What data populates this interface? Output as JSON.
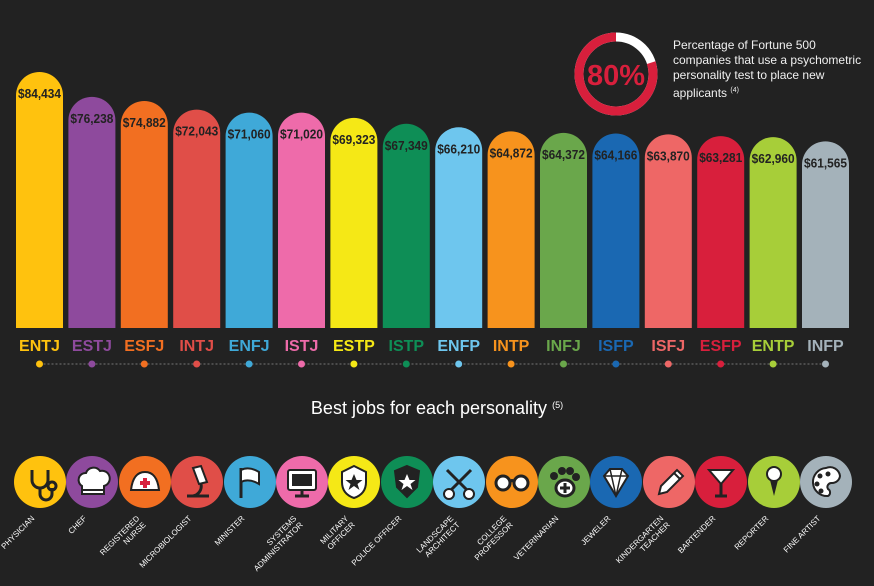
{
  "chart_data": {
    "type": "bar",
    "title": "",
    "xlabel": "",
    "ylabel": "",
    "categories": [
      "ENTJ",
      "ESTJ",
      "ESFJ",
      "INTJ",
      "ENFJ",
      "ISTJ",
      "ESTP",
      "ISTP",
      "ENFP",
      "INTP",
      "INFJ",
      "ISFP",
      "ISFJ",
      "ESFP",
      "ENTP",
      "INFP"
    ],
    "values": [
      84434,
      76238,
      74882,
      72043,
      71060,
      71020,
      69323,
      67349,
      66210,
      64872,
      64372,
      64166,
      63870,
      63281,
      62960,
      61565
    ],
    "value_labels": [
      "$84,434",
      "$76,238",
      "$74,882",
      "$72,043",
      "$71,060",
      "$71,020",
      "$69,323",
      "$67,349",
      "$66,210",
      "$64,872",
      "$64,372",
      "$64,166",
      "$63,870",
      "$63,281",
      "$62,960",
      "$61,565"
    ],
    "colors": [
      "#FFC20E",
      "#8E4A9D",
      "#F26F21",
      "#E04E48",
      "#3FA9D8",
      "#EE6BAA",
      "#F5E816",
      "#0E8E56",
      "#6EC6EE",
      "#F7931D",
      "#6AA74B",
      "#1A68B2",
      "#EE6766",
      "#D81F3C",
      "#A7CE39",
      "#A4B2BA"
    ],
    "label_colors": [
      "#FFC20E",
      "#8E4A9D",
      "#F26F21",
      "#E04E48",
      "#3FA9D8",
      "#EE6BAA",
      "#F5E816",
      "#0E8E56",
      "#6EC6EE",
      "#F7931D",
      "#6AA74B",
      "#1A68B2",
      "#EE6766",
      "#D81F3C",
      "#A7CE39",
      "#A4B2BA"
    ],
    "ylim": [
      0,
      90000
    ],
    "grid": false,
    "legend": "none"
  },
  "stat": {
    "value": "80%",
    "percent": 80,
    "ring_color": "#D81F3C",
    "ring_track_color": "#FFFFFF",
    "text": "Percentage of Fortune 500 companies that use a psychometric personality test to place new applicants",
    "footnote": "(4)"
  },
  "jobs_section": {
    "title": "Best jobs for each personality",
    "footnote": "(5)"
  },
  "jobs": [
    {
      "label": "PHYSICIAN",
      "icon": "stethoscope-icon"
    },
    {
      "label": "CHEF",
      "icon": "chef-hat-icon"
    },
    {
      "label": "REGISTERED\nNURSE",
      "icon": "nurse-cap-icon"
    },
    {
      "label": "MICROBIOLOGIST",
      "icon": "microscope-icon"
    },
    {
      "label": "MINISTER",
      "icon": "flag-icon"
    },
    {
      "label": "SYSTEMS\nADMINISTRATOR",
      "icon": "computer-monitor-icon"
    },
    {
      "label": "MILITARY\nOFFICER",
      "icon": "military-badge-icon"
    },
    {
      "label": "POLICE OFFICER",
      "icon": "police-badge-icon"
    },
    {
      "label": "LANDSCAPE\nARCHITECT",
      "icon": "garden-shears-icon"
    },
    {
      "label": "COLLEGE\nPROFESSOR",
      "icon": "glasses-icon"
    },
    {
      "label": "VETERINARIAN",
      "icon": "paw-icon"
    },
    {
      "label": "JEWELER",
      "icon": "diamond-icon"
    },
    {
      "label": "KINDERGARTEN\nTEACHER",
      "icon": "pencil-icon"
    },
    {
      "label": "BARTENDER",
      "icon": "cocktail-icon"
    },
    {
      "label": "REPORTER",
      "icon": "microphone-icon"
    },
    {
      "label": "FINE ARTIST",
      "icon": "palette-icon"
    }
  ]
}
